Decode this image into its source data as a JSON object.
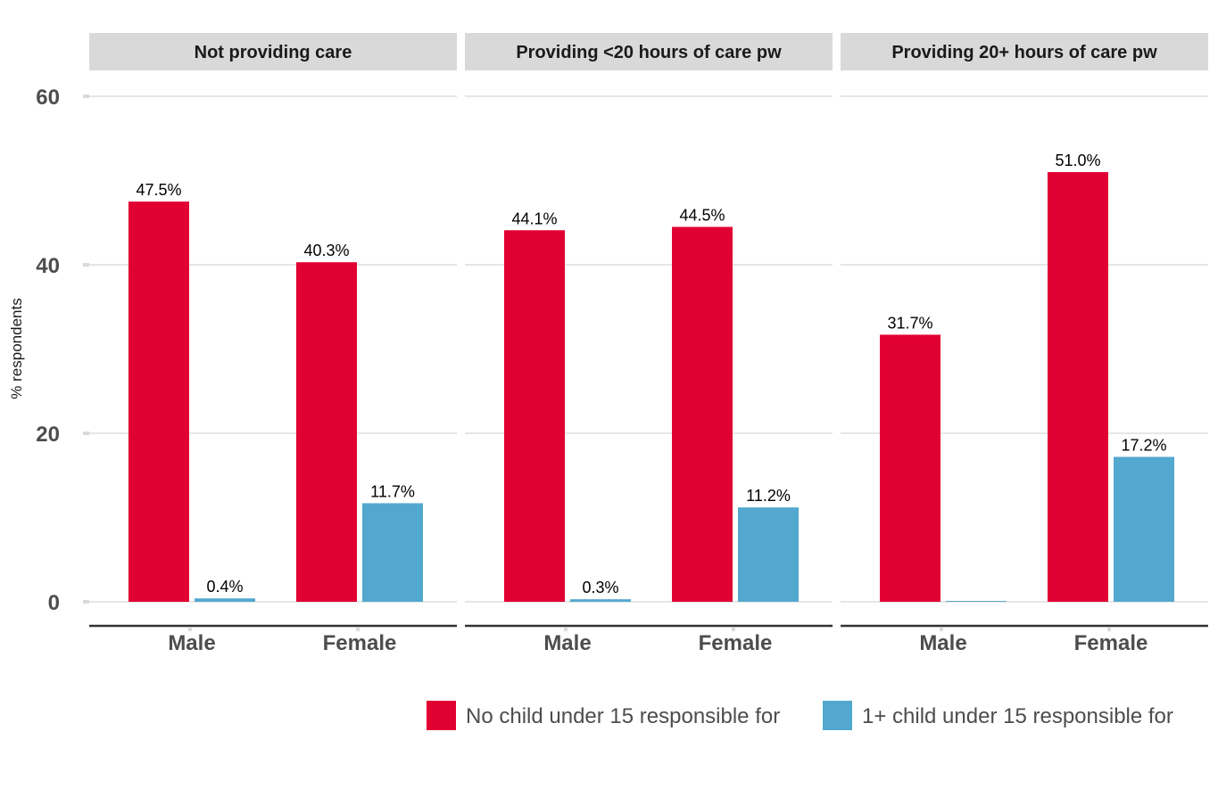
{
  "chart_data": {
    "type": "bar",
    "ylabel": "% respondents",
    "ylim": [
      0,
      60
    ],
    "yticks": [
      0,
      20,
      40,
      60
    ],
    "grid": true,
    "legend_position": "bottom-right",
    "categories": [
      "Male",
      "Female"
    ],
    "series": [
      {
        "name": "No child under 15 responsible for",
        "color": "#e10032"
      },
      {
        "name": "1+ child under 15 responsible for",
        "color": "#52a8ce"
      }
    ],
    "panels": [
      {
        "title": "Not providing care",
        "values": [
          [
            47.5,
            0.4
          ],
          [
            40.3,
            11.7
          ]
        ],
        "labels": [
          [
            "47.5%",
            "0.4%"
          ],
          [
            "40.3%",
            "11.7%"
          ]
        ]
      },
      {
        "title": "Providing <20 hours of care pw",
        "values": [
          [
            44.1,
            0.3
          ],
          [
            44.5,
            11.2
          ]
        ],
        "labels": [
          [
            "44.1%",
            "0.3%"
          ],
          [
            "44.5%",
            "11.2%"
          ]
        ]
      },
      {
        "title": "Providing 20+ hours of care pw",
        "values": [
          [
            31.7,
            0.1
          ],
          [
            51.0,
            17.2
          ]
        ],
        "labels": [
          [
            "31.7%",
            ""
          ],
          [
            "51.0%",
            "17.2%"
          ]
        ]
      }
    ]
  }
}
